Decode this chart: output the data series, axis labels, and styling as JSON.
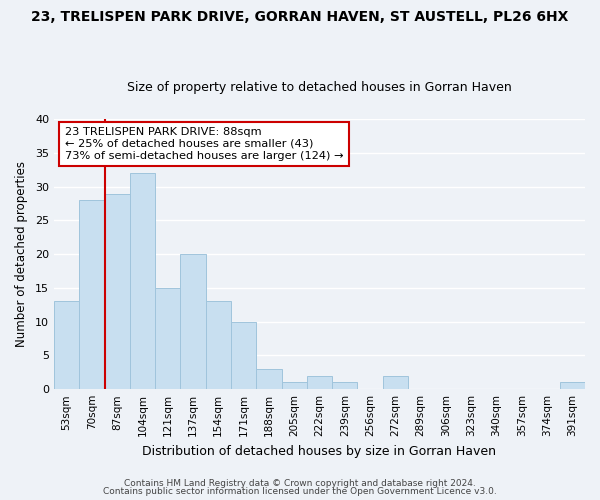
{
  "title1": "23, TRELISPEN PARK DRIVE, GORRAN HAVEN, ST AUSTELL, PL26 6HX",
  "title2": "Size of property relative to detached houses in Gorran Haven",
  "xlabel": "Distribution of detached houses by size in Gorran Haven",
  "ylabel": "Number of detached properties",
  "categories": [
    "53sqm",
    "70sqm",
    "87sqm",
    "104sqm",
    "121sqm",
    "137sqm",
    "154sqm",
    "171sqm",
    "188sqm",
    "205sqm",
    "222sqm",
    "239sqm",
    "256sqm",
    "272sqm",
    "289sqm",
    "306sqm",
    "323sqm",
    "340sqm",
    "357sqm",
    "374sqm",
    "391sqm"
  ],
  "values": [
    13,
    28,
    29,
    32,
    15,
    20,
    13,
    10,
    3,
    1,
    2,
    1,
    0,
    2,
    0,
    0,
    0,
    0,
    0,
    0,
    1
  ],
  "bar_color": "#c8dff0",
  "bar_edge_color": "#a0c4dc",
  "vline_color": "#cc0000",
  "ylim": [
    0,
    40
  ],
  "yticks": [
    0,
    5,
    10,
    15,
    20,
    25,
    30,
    35,
    40
  ],
  "annotation_line1": "23 TRELISPEN PARK DRIVE: 88sqm",
  "annotation_line2": "← 25% of detached houses are smaller (43)",
  "annotation_line3": "73% of semi-detached houses are larger (124) →",
  "annotation_box_edge": "#cc0000",
  "footer1": "Contains HM Land Registry data © Crown copyright and database right 2024.",
  "footer2": "Contains public sector information licensed under the Open Government Licence v3.0.",
  "background_color": "#eef2f7",
  "grid_color": "#ffffff"
}
